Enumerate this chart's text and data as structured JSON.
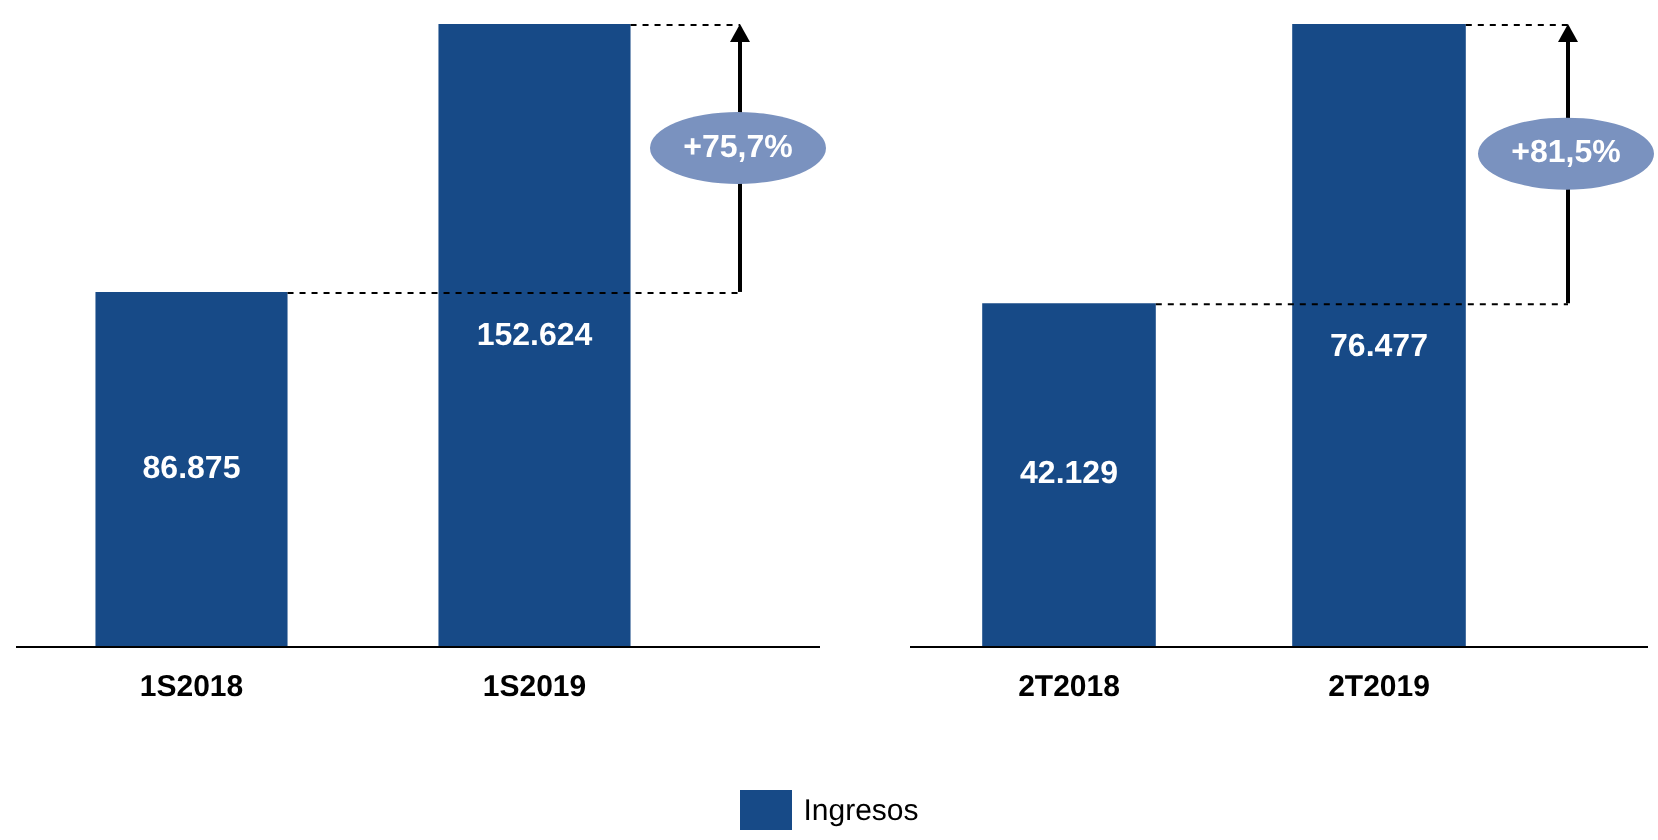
{
  "chart_data": [
    {
      "type": "bar",
      "categories": [
        "1S2018",
        "1S2019"
      ],
      "series": [
        {
          "name": "Ingresos",
          "color": "#174a87",
          "values": [
            86875,
            152624
          ],
          "value_labels": [
            "86.875",
            "152.624"
          ]
        }
      ],
      "ref_lines": [
        {
          "axis": "y",
          "value": 86875,
          "line_style": "dashed",
          "color": "#000000"
        },
        {
          "axis": "y",
          "value": 152624,
          "line_style": "dashed",
          "color": "#000000"
        }
      ],
      "annotations": [
        "+75,7%"
      ],
      "legend": "bottom",
      "grid": false,
      "tick_labels": "x"
    },
    {
      "type": "bar",
      "categories": [
        "2T2018",
        "2T2019"
      ],
      "series": [
        {
          "color": "#174a87",
          "values": [
            42129,
            76477
          ],
          "value_labels": [
            "42.129",
            "76.477"
          ]
        }
      ],
      "ref_lines": [
        {
          "axis": "y",
          "value": 42129,
          "line_style": "dashed",
          "color": "#000000"
        },
        {
          "axis": "y",
          "value": 76477,
          "line_style": "dashed",
          "color": "#000000"
        }
      ],
      "annotations": [
        "+81,5%"
      ],
      "grid": false,
      "tick_labels": "x"
    }
  ]
}
